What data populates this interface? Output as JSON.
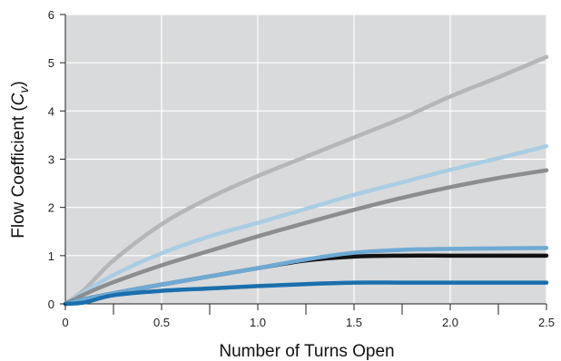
{
  "chart_data": {
    "type": "line",
    "title": "",
    "xlabel": "Number of Turns Open",
    "ylabel_main": "Flow Coefficient (",
    "ylabel_symbol": "C",
    "ylabel_sub": "v",
    "ylabel_close": ")",
    "xlim": [
      0,
      2.5
    ],
    "ylim": [
      0,
      6
    ],
    "xticks": [
      0,
      0.5,
      1.0,
      1.5,
      2.0,
      2.5
    ],
    "xtick_labels": [
      "0",
      "0.5",
      "1.0",
      "1.5",
      "2.0",
      "2.5"
    ],
    "xminor_ticks": [
      0.25,
      0.75,
      1.25,
      1.75,
      2.25
    ],
    "yticks": [
      0,
      1,
      2,
      3,
      4,
      5,
      6
    ],
    "ytick_labels": [
      "0",
      "1",
      "2",
      "3",
      "4",
      "5",
      "6"
    ],
    "grid": true,
    "plot_background": "#d9dadb",
    "grid_color": "#ffffff",
    "series": [
      {
        "color": "#b5b6b8",
        "points": [
          [
            0,
            0
          ],
          [
            0.1,
            0.3
          ],
          [
            0.25,
            0.9
          ],
          [
            0.5,
            1.65
          ],
          [
            0.75,
            2.2
          ],
          [
            1.0,
            2.65
          ],
          [
            1.25,
            3.05
          ],
          [
            1.5,
            3.45
          ],
          [
            1.75,
            3.85
          ],
          [
            2.0,
            4.3
          ],
          [
            2.25,
            4.7
          ],
          [
            2.5,
            5.12
          ]
        ]
      },
      {
        "color": "#a9cde3",
        "points": [
          [
            0,
            0
          ],
          [
            0.1,
            0.25
          ],
          [
            0.25,
            0.6
          ],
          [
            0.5,
            1.05
          ],
          [
            0.75,
            1.4
          ],
          [
            1.0,
            1.68
          ],
          [
            1.25,
            1.97
          ],
          [
            1.5,
            2.26
          ],
          [
            1.75,
            2.52
          ],
          [
            2.0,
            2.78
          ],
          [
            2.25,
            3.02
          ],
          [
            2.5,
            3.27
          ]
        ]
      },
      {
        "color": "#8c8d8f",
        "points": [
          [
            0,
            0
          ],
          [
            0.1,
            0.2
          ],
          [
            0.25,
            0.45
          ],
          [
            0.5,
            0.8
          ],
          [
            0.75,
            1.1
          ],
          [
            1.0,
            1.4
          ],
          [
            1.25,
            1.68
          ],
          [
            1.5,
            1.95
          ],
          [
            1.75,
            2.2
          ],
          [
            2.0,
            2.42
          ],
          [
            2.25,
            2.61
          ],
          [
            2.5,
            2.77
          ]
        ]
      },
      {
        "color": "#111111",
        "points": [
          [
            0,
            0
          ],
          [
            0.1,
            0.1
          ],
          [
            0.25,
            0.22
          ],
          [
            0.5,
            0.4
          ],
          [
            0.75,
            0.57
          ],
          [
            1.0,
            0.74
          ],
          [
            1.25,
            0.9
          ],
          [
            1.5,
            0.98
          ],
          [
            1.75,
            1.0
          ],
          [
            2.0,
            1.0
          ],
          [
            2.25,
            1.0
          ],
          [
            2.5,
            1.0
          ]
        ]
      },
      {
        "color": "#6eaad4",
        "points": [
          [
            0,
            0
          ],
          [
            0.1,
            0.1
          ],
          [
            0.25,
            0.22
          ],
          [
            0.5,
            0.4
          ],
          [
            0.75,
            0.57
          ],
          [
            1.0,
            0.74
          ],
          [
            1.25,
            0.92
          ],
          [
            1.5,
            1.06
          ],
          [
            1.75,
            1.12
          ],
          [
            2.0,
            1.14
          ],
          [
            2.25,
            1.15
          ],
          [
            2.5,
            1.16
          ]
        ]
      },
      {
        "color": "#1a6fad",
        "points": [
          [
            0,
            0
          ],
          [
            0.1,
            0.03
          ],
          [
            0.25,
            0.18
          ],
          [
            0.5,
            0.27
          ],
          [
            0.75,
            0.32
          ],
          [
            1.0,
            0.37
          ],
          [
            1.25,
            0.41
          ],
          [
            1.5,
            0.44
          ],
          [
            1.75,
            0.44
          ],
          [
            2.0,
            0.44
          ],
          [
            2.25,
            0.44
          ],
          [
            2.5,
            0.44
          ]
        ]
      }
    ]
  }
}
